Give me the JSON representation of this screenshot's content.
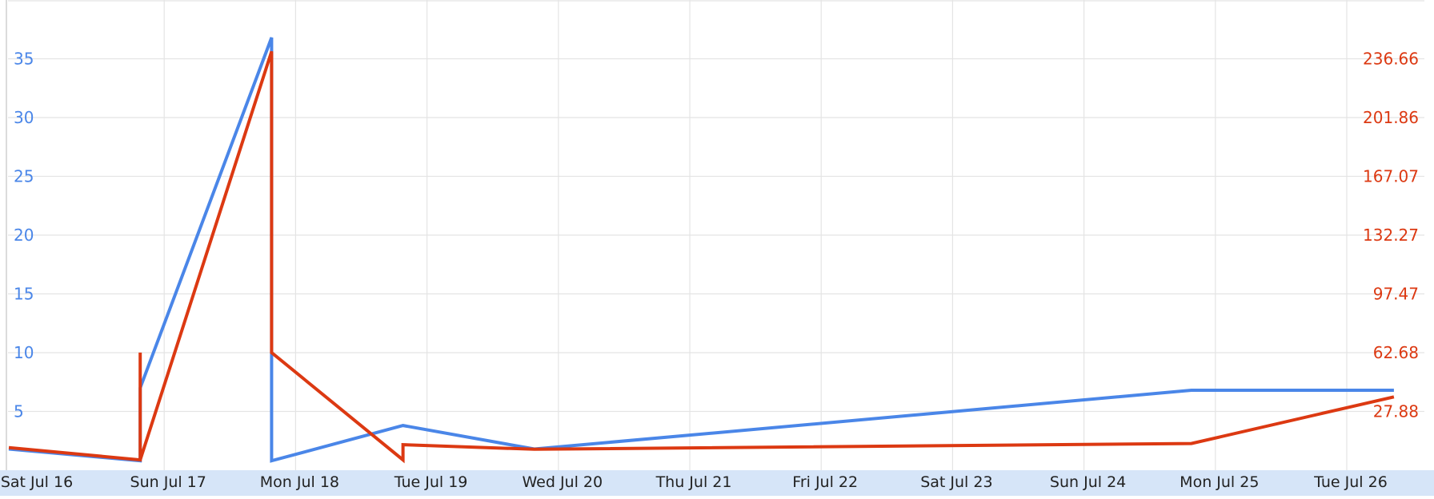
{
  "chart_data": {
    "type": "line",
    "title": "",
    "xlabel": "",
    "ylabel": "",
    "grid": true,
    "legend": "none",
    "x_ticks": [
      "Sat Jul 16",
      "Sun Jul 17",
      "Mon Jul 18",
      "Tue Jul 19",
      "Wed Jul 20",
      "Thu Jul 21",
      "Fri Jul 22",
      "Sat Jul 23",
      "Sun Jul 24",
      "Mon Jul 25",
      "Tue Jul 26"
    ],
    "xlim": [
      "2016-07-16T00:00",
      "2016-07-26T13:00"
    ],
    "y_left": {
      "ticks": [
        "5",
        "10",
        "15",
        "20",
        "25",
        "30",
        "35"
      ],
      "tick_values": [
        5,
        10,
        15,
        20,
        25,
        30,
        35
      ],
      "ylim": [
        0,
        40
      ],
      "color": "#4a86e8"
    },
    "y_right": {
      "ticks": [
        "27.88",
        "62.68",
        "97.47",
        "132.27",
        "167.07",
        "201.86",
        "236.66"
      ],
      "tick_values": [
        27.88,
        62.68,
        97.47,
        132.27,
        167.07,
        201.86,
        236.66
      ],
      "ylim": [
        -6.92,
        271.46
      ],
      "color": "#dc3912"
    },
    "series": [
      {
        "axis": "left",
        "color": "#4a86e8",
        "points": [
          [
            "2016-07-16T00:00",
            1.8
          ],
          [
            "2016-07-17T00:00",
            0.8
          ],
          [
            "2016-07-17T00:00",
            7
          ],
          [
            "2016-07-18T00:00",
            36.8
          ],
          [
            "2016-07-18T00:00",
            0.8
          ],
          [
            "2016-07-19T00:00",
            3.8
          ],
          [
            "2016-07-20T00:00",
            1.8
          ],
          [
            "2016-07-25T00:00",
            6.8
          ],
          [
            "2016-07-26T13:00",
            6.8
          ]
        ]
      },
      {
        "axis": "right",
        "color": "#dc3912",
        "points": [
          [
            "2016-07-16T00:00",
            6.5
          ],
          [
            "2016-07-17T00:00",
            -0.8
          ],
          [
            "2016-07-17T00:00",
            62.7
          ],
          [
            "2016-07-17T00:00",
            -0.8
          ],
          [
            "2016-07-18T00:00",
            241
          ],
          [
            "2016-07-18T00:00",
            62.7
          ],
          [
            "2016-07-19T00:00",
            -0.8
          ],
          [
            "2016-07-19T00:00",
            8.2
          ],
          [
            "2016-07-20T00:00",
            5.5
          ],
          [
            "2016-07-25T00:00",
            8.9
          ],
          [
            "2016-07-26T13:00",
            36.5
          ]
        ]
      }
    ]
  }
}
